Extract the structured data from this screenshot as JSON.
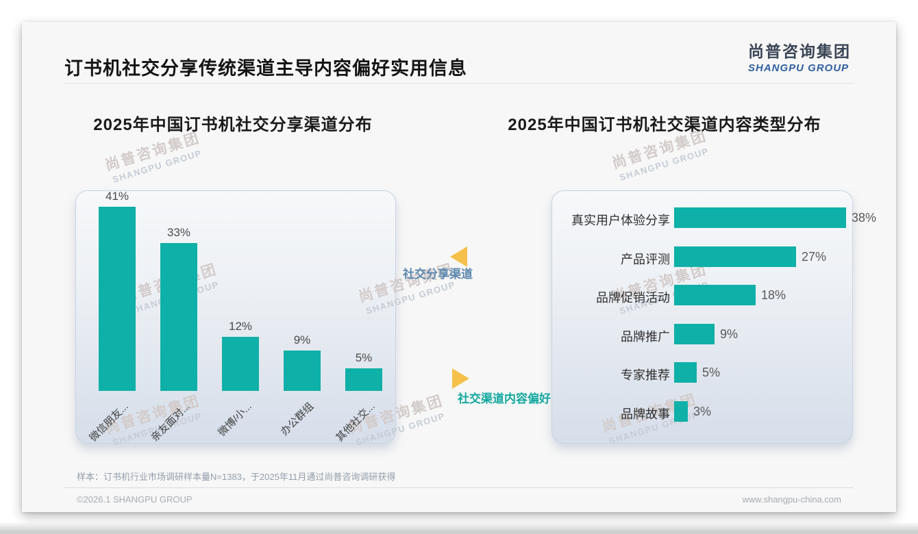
{
  "page": {
    "title": "订书机社交分享传统渠道主导内容偏好实用信息",
    "logo": {
      "zh": "尚普咨询集团",
      "en": "SHANGPU GROUP"
    },
    "watermark": {
      "zh": "尚普咨询集团",
      "en": "SHANGPU GROUP"
    },
    "annotations": [
      {
        "label": "社交分享渠道",
        "direction": "left",
        "color": "#5c87ae"
      },
      {
        "label": "社交渠道内容偏好",
        "direction": "right",
        "color": "#12a79e"
      }
    ],
    "sample_note": "样本：订书机行业市场调研样本量N=1383，于2025年11月通过尚普咨询调研获得",
    "footer": {
      "copyright": "©2026.1 SHANGPU GROUP",
      "website": "www.shangpu-china.com"
    }
  },
  "colors": {
    "bar_teal": "#0fb0a7",
    "triangle_orange": "#f5c14b",
    "logo_blue": "#2f5f9f"
  },
  "chart_data": [
    {
      "type": "bar",
      "orientation": "vertical",
      "title": "2025年中国订书机社交分享渠道分布",
      "categories": [
        "微信朋友...",
        "亲友面对...",
        "微博/小...",
        "办公群组",
        "其他社交..."
      ],
      "values": [
        41,
        33,
        12,
        9,
        5
      ],
      "value_labels": [
        "41%",
        "33%",
        "12%",
        "9%",
        "5%"
      ],
      "unit": "%",
      "color": "#0fb0a7",
      "xlabel": "",
      "ylabel": "",
      "ylim": [
        0,
        45
      ],
      "grid": false,
      "legend": "none"
    },
    {
      "type": "bar",
      "orientation": "horizontal",
      "title": "2025年中国订书机社交渠道内容类型分布",
      "categories": [
        "真实用户体验分享",
        "产品评测",
        "品牌促销活动",
        "品牌推广",
        "专家推荐",
        "品牌故事"
      ],
      "values": [
        38,
        27,
        18,
        9,
        5,
        3
      ],
      "value_labels": [
        "38%",
        "27%",
        "18%",
        "9%",
        "5%",
        "3%"
      ],
      "unit": "%",
      "color": "#0fb0a7",
      "xlabel": "",
      "ylabel": "",
      "xlim": [
        0,
        40
      ],
      "grid": false,
      "legend": "none"
    }
  ]
}
